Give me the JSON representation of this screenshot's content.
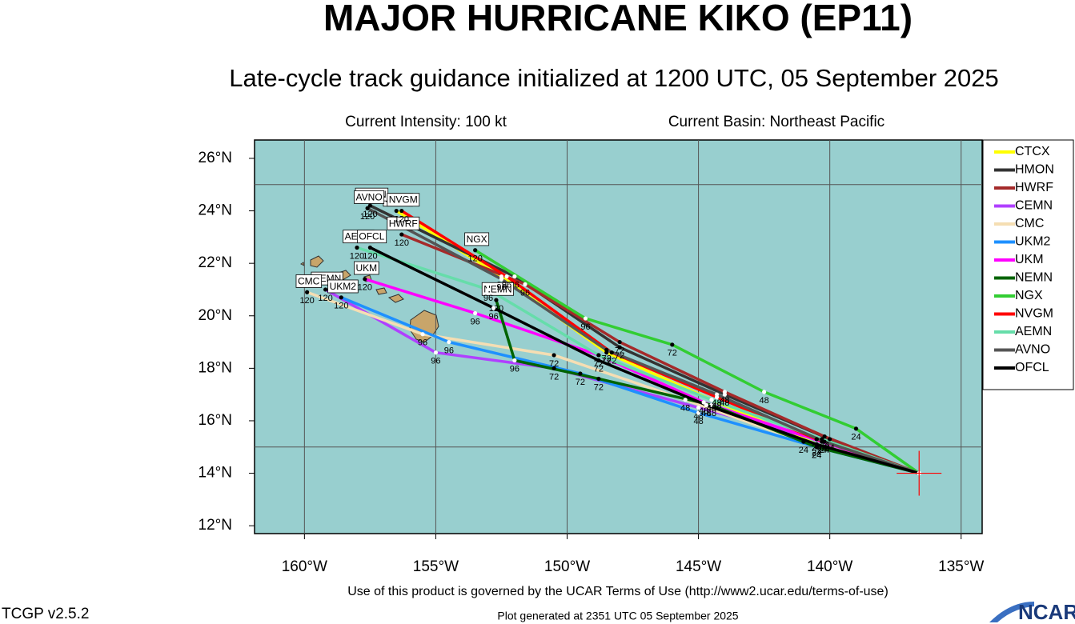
{
  "chart_data": {
    "type": "track",
    "title": "MAJOR HURRICANE KIKO (EP11)",
    "subtitle": "Late-cycle track guidance initialized at 1200 UTC, 05 September 2025",
    "intensity": "Current Intensity: 100 kt",
    "basin": "Current Basin: Northeast Pacific",
    "footer_terms": "Use of this product is governed by the UCAR Terms of Use (http://www2.ucar.edu/terms-of-use)",
    "version": "TCGP v2.5.2",
    "generated": "Plot generated at 2351 UTC   05 September 2025",
    "logo": "NCAR",
    "xlim": [
      -161.9,
      -134.2
    ],
    "ylim": [
      11.7,
      26.7
    ],
    "xticks": [
      {
        "value": -160,
        "label": "160°W"
      },
      {
        "value": -155,
        "label": "155°W"
      },
      {
        "value": -150,
        "label": "150°W"
      },
      {
        "value": -145,
        "label": "145°W"
      },
      {
        "value": -140,
        "label": "140°W"
      },
      {
        "value": -135,
        "label": "135°W"
      }
    ],
    "yticks": [
      {
        "value": 12,
        "label": "12°N"
      },
      {
        "value": 14,
        "label": "14°N"
      },
      {
        "value": 16,
        "label": "16°N"
      },
      {
        "value": 18,
        "label": "18°N"
      },
      {
        "value": 20,
        "label": "20°N"
      },
      {
        "value": 22,
        "label": "22°N"
      },
      {
        "value": 24,
        "label": "24°N"
      },
      {
        "value": 26,
        "label": "26°N"
      }
    ],
    "xgrid": [
      -160,
      -155,
      -150,
      -145,
      -140,
      -135
    ],
    "ygrid": [
      15,
      25
    ],
    "background": "#98cfcf",
    "current_position": [
      -136.6,
      14.0
    ],
    "forecast_hours": [
      24,
      48,
      72,
      96,
      120
    ],
    "series": [
      {
        "name": "CTCX",
        "color": "#ffff00",
        "x": [
          -136.6,
          -140.5,
          -144.5,
          -148.5,
          -152.5,
          -156.5
        ],
        "y": [
          14.0,
          15.1,
          16.8,
          18.6,
          21.5,
          24.0
        ]
      },
      {
        "name": "HMON",
        "color": "#333333",
        "x": [
          -136.6,
          -140.0,
          -144.0,
          -148.0,
          -152.0,
          -157.5
        ],
        "y": [
          14.0,
          15.3,
          17.0,
          18.8,
          21.5,
          24.2
        ]
      },
      {
        "name": "HWRF",
        "color": "#a52a2a",
        "x": [
          -136.6,
          -140.2,
          -144.0,
          -148.0,
          -151.6,
          -156.3
        ],
        "y": [
          14.0,
          15.4,
          17.1,
          19.0,
          21.2,
          23.1
        ]
      },
      {
        "name": "CEMN",
        "color": "#b040ff",
        "x": [
          -136.6,
          -140.5,
          -145.0,
          -150.5,
          -155.0,
          -159.2
        ],
        "y": [
          14.0,
          15.3,
          16.5,
          18.0,
          18.6,
          21.0
        ]
      },
      {
        "name": "CMC",
        "color": "#f5deb3",
        "x": [
          -136.6,
          -141.0,
          -145.5,
          -150.5,
          -155.5,
          -159.9
        ],
        "y": [
          14.0,
          15.2,
          16.8,
          18.5,
          19.3,
          20.9
        ]
      },
      {
        "name": "UKM2",
        "color": "#1e90ff",
        "x": [
          -136.6,
          -140.5,
          -145.0,
          -149.5,
          -154.5,
          -158.6
        ],
        "y": [
          14.0,
          15.0,
          16.3,
          17.8,
          19.0,
          20.7
        ]
      },
      {
        "name": "UKM",
        "color": "#ff00ff",
        "x": [
          -136.6,
          -140.3,
          -144.8,
          -148.8,
          -153.5,
          -157.7
        ],
        "y": [
          14.0,
          15.2,
          16.7,
          18.5,
          20.1,
          21.4
        ]
      },
      {
        "name": "NEMN",
        "color": "#006400",
        "x": [
          -136.6,
          -140.5,
          -144.5,
          -148.8,
          -152.0,
          -152.7
        ],
        "y": [
          14.0,
          15.0,
          16.6,
          17.6,
          18.3,
          20.6
        ]
      },
      {
        "name": "NGX",
        "color": "#32cd32",
        "x": [
          -136.6,
          -139.0,
          -142.5,
          -146.0,
          -149.3,
          -153.5
        ],
        "y": [
          14.0,
          15.7,
          17.1,
          18.9,
          19.9,
          22.5
        ]
      },
      {
        "name": "NVGM",
        "color": "#ff0000",
        "x": [
          -136.6,
          -140.5,
          -144.3,
          -148.3,
          -152.3,
          -156.3
        ],
        "y": [
          14.0,
          15.3,
          16.9,
          18.6,
          21.5,
          24.0
        ]
      },
      {
        "name": "AEMN",
        "color": "#66ddaa",
        "x": [
          -136.6,
          -140.3,
          -144.5,
          -148.8,
          -153.0,
          -158.0
        ],
        "y": [
          14.0,
          15.3,
          16.8,
          18.5,
          21.0,
          22.6
        ]
      },
      {
        "name": "AVNO",
        "color": "#555555",
        "x": [
          -136.6,
          -140.2,
          -144.3,
          -148.5,
          -152.5,
          -157.6
        ],
        "y": [
          14.0,
          15.2,
          17.0,
          18.7,
          21.4,
          24.1
        ]
      },
      {
        "name": "OFCL",
        "color": "#000000",
        "x": [
          -136.6,
          -140.5,
          -144.7,
          -148.8,
          -152.8,
          -157.5
        ],
        "y": [
          14.0,
          15.1,
          16.6,
          18.3,
          20.3,
          22.6
        ]
      }
    ]
  }
}
